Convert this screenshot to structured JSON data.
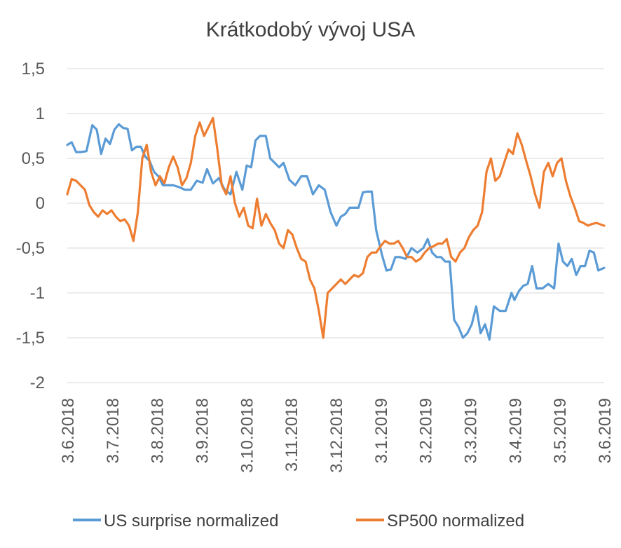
{
  "chart_data": {
    "type": "line",
    "title": "Krátkodobý vývoj USA",
    "xlabel": "",
    "ylabel": "",
    "ylim": [
      -2,
      1.5
    ],
    "y_ticks": [
      "1,5",
      "1",
      "0,5",
      "0",
      "-0,5",
      "-1",
      "-1,5",
      "-2"
    ],
    "y_tick_values": [
      1.5,
      1,
      0.5,
      0,
      -0.5,
      -1,
      -1.5,
      -2
    ],
    "x_ticks": [
      "3.6.2018",
      "3.7.2018",
      "3.8.2018",
      "3.9.2018",
      "3.10.2018",
      "3.11.2018",
      "3.12.2018",
      "3.1.2019",
      "3.2.2019",
      "3.3.2019",
      "3.4.2019",
      "3.5.2019",
      "3.6.2019"
    ],
    "xlim": [
      "2018-06-03",
      "2019-06-03"
    ],
    "grid": "horizontal",
    "legend": "bottom",
    "series": [
      {
        "name": "US surprise normalized",
        "color": "#5B9BD5",
        "x": [
          "2018-06-03",
          "2018-06-06",
          "2018-06-09",
          "2018-06-12",
          "2018-06-16",
          "2018-06-20",
          "2018-06-23",
          "2018-06-26",
          "2018-06-29",
          "2018-07-02",
          "2018-07-05",
          "2018-07-08",
          "2018-07-11",
          "2018-07-14",
          "2018-07-17",
          "2018-07-20",
          "2018-07-23",
          "2018-07-26",
          "2018-07-29",
          "2018-08-01",
          "2018-08-04",
          "2018-08-07",
          "2018-08-10",
          "2018-08-14",
          "2018-08-18",
          "2018-08-22",
          "2018-08-26",
          "2018-08-30",
          "2018-09-03",
          "2018-09-06",
          "2018-09-10",
          "2018-09-14",
          "2018-09-18",
          "2018-09-22",
          "2018-09-26",
          "2018-09-30",
          "2018-10-03",
          "2018-10-06",
          "2018-10-09",
          "2018-10-12",
          "2018-10-16",
          "2018-10-19",
          "2018-10-22",
          "2018-10-25",
          "2018-10-28",
          "2018-11-01",
          "2018-11-05",
          "2018-11-09",
          "2018-11-13",
          "2018-11-17",
          "2018-11-21",
          "2018-11-25",
          "2018-11-29",
          "2018-12-03",
          "2018-12-06",
          "2018-12-09",
          "2018-12-12",
          "2018-12-15",
          "2018-12-18",
          "2018-12-21",
          "2018-12-24",
          "2018-12-27",
          "2018-12-30",
          "2019-01-03",
          "2019-01-06",
          "2019-01-09",
          "2019-01-12",
          "2019-01-15",
          "2019-01-19",
          "2019-01-23",
          "2019-01-27",
          "2019-01-31",
          "2019-02-03",
          "2019-02-06",
          "2019-02-09",
          "2019-02-12",
          "2019-02-15",
          "2019-02-18",
          "2019-02-21",
          "2019-02-24",
          "2019-02-27",
          "2019-03-02",
          "2019-03-05",
          "2019-03-08",
          "2019-03-11",
          "2019-03-14",
          "2019-03-17",
          "2019-03-20",
          "2019-03-24",
          "2019-03-28",
          "2019-04-01",
          "2019-04-03",
          "2019-04-06",
          "2019-04-09",
          "2019-04-12",
          "2019-04-15",
          "2019-04-18",
          "2019-04-22",
          "2019-04-26",
          "2019-04-30",
          "2019-05-03",
          "2019-05-06",
          "2019-05-09",
          "2019-05-12",
          "2019-05-15",
          "2019-05-18",
          "2019-05-21",
          "2019-05-24",
          "2019-05-27",
          "2019-05-30",
          "2019-06-03"
        ],
        "values": [
          0.65,
          0.68,
          0.57,
          0.57,
          0.58,
          0.87,
          0.82,
          0.55,
          0.72,
          0.66,
          0.82,
          0.88,
          0.84,
          0.83,
          0.59,
          0.63,
          0.63,
          0.52,
          0.47,
          0.35,
          0.3,
          0.2,
          0.2,
          0.2,
          0.18,
          0.15,
          0.15,
          0.25,
          0.23,
          0.38,
          0.22,
          0.28,
          0.15,
          0.1,
          0.35,
          0.15,
          0.42,
          0.4,
          0.7,
          0.75,
          0.75,
          0.5,
          0.45,
          0.4,
          0.45,
          0.26,
          0.2,
          0.3,
          0.3,
          0.1,
          0.2,
          0.15,
          -0.1,
          -0.25,
          -0.15,
          -0.12,
          -0.05,
          -0.05,
          -0.05,
          0.12,
          0.13,
          0.13,
          -0.3,
          -0.58,
          -0.75,
          -0.74,
          -0.6,
          -0.6,
          -0.62,
          -0.5,
          -0.55,
          -0.5,
          -0.4,
          -0.55,
          -0.6,
          -0.6,
          -0.65,
          -0.65,
          -1.3,
          -1.38,
          -1.5,
          -1.45,
          -1.35,
          -1.15,
          -1.45,
          -1.35,
          -1.52,
          -1.15,
          -1.2,
          -1.2,
          -1.0,
          -1.08,
          -0.98,
          -0.92,
          -0.9,
          -0.7,
          -0.95,
          -0.95,
          -0.9,
          -0.95,
          -0.45,
          -0.65,
          -0.7,
          -0.62,
          -0.8,
          -0.7,
          -0.7,
          -0.53,
          -0.55,
          -0.75,
          -0.72
        ]
      },
      {
        "name": "SP500 normalized",
        "color": "#ED7D31",
        "x": [
          "2018-06-03",
          "2018-06-06",
          "2018-06-09",
          "2018-06-12",
          "2018-06-15",
          "2018-06-18",
          "2018-06-21",
          "2018-06-24",
          "2018-06-27",
          "2018-06-30",
          "2018-07-03",
          "2018-07-06",
          "2018-07-09",
          "2018-07-12",
          "2018-07-15",
          "2018-07-18",
          "2018-07-21",
          "2018-07-24",
          "2018-07-27",
          "2018-07-30",
          "2018-08-02",
          "2018-08-05",
          "2018-08-08",
          "2018-08-11",
          "2018-08-14",
          "2018-08-17",
          "2018-08-20",
          "2018-08-23",
          "2018-08-26",
          "2018-08-29",
          "2018-09-01",
          "2018-09-04",
          "2018-09-07",
          "2018-09-10",
          "2018-09-13",
          "2018-09-16",
          "2018-09-19",
          "2018-09-22",
          "2018-09-25",
          "2018-09-28",
          "2018-10-01",
          "2018-10-04",
          "2018-10-07",
          "2018-10-10",
          "2018-10-13",
          "2018-10-16",
          "2018-10-19",
          "2018-10-22",
          "2018-10-25",
          "2018-10-28",
          "2018-10-31",
          "2018-11-03",
          "2018-11-06",
          "2018-11-09",
          "2018-11-12",
          "2018-11-15",
          "2018-11-18",
          "2018-11-21",
          "2018-11-24",
          "2018-11-27",
          "2018-11-30",
          "2018-12-03",
          "2018-12-06",
          "2018-12-09",
          "2018-12-12",
          "2018-12-15",
          "2018-12-18",
          "2018-12-21",
          "2018-12-24",
          "2018-12-27",
          "2018-12-30",
          "2019-01-02",
          "2019-01-05",
          "2019-01-08",
          "2019-01-11",
          "2019-01-14",
          "2019-01-17",
          "2019-01-20",
          "2019-01-23",
          "2019-01-26",
          "2019-01-29",
          "2019-02-01",
          "2019-02-04",
          "2019-02-07",
          "2019-02-10",
          "2019-02-13",
          "2019-02-16",
          "2019-02-19",
          "2019-02-22",
          "2019-02-25",
          "2019-02-28",
          "2019-03-03",
          "2019-03-06",
          "2019-03-09",
          "2019-03-12",
          "2019-03-15",
          "2019-03-18",
          "2019-03-21",
          "2019-03-24",
          "2019-03-27",
          "2019-03-30",
          "2019-04-02",
          "2019-04-05",
          "2019-04-08",
          "2019-04-11",
          "2019-04-14",
          "2019-04-17",
          "2019-04-20",
          "2019-04-23",
          "2019-04-26",
          "2019-04-29",
          "2019-05-02",
          "2019-05-05",
          "2019-05-08",
          "2019-05-11",
          "2019-05-14",
          "2019-05-17",
          "2019-05-20",
          "2019-05-23",
          "2019-05-26",
          "2019-05-29",
          "2019-06-01",
          "2019-06-03"
        ],
        "values": [
          0.1,
          0.27,
          0.25,
          0.2,
          0.15,
          -0.02,
          -0.1,
          -0.15,
          -0.08,
          -0.12,
          -0.08,
          -0.15,
          -0.2,
          -0.18,
          -0.25,
          -0.42,
          -0.1,
          0.5,
          0.65,
          0.35,
          0.2,
          0.3,
          0.22,
          0.4,
          0.52,
          0.4,
          0.2,
          0.28,
          0.45,
          0.75,
          0.9,
          0.75,
          0.85,
          0.95,
          0.6,
          0.2,
          0.1,
          0.3,
          0.0,
          -0.15,
          -0.05,
          -0.25,
          -0.28,
          0.05,
          -0.25,
          -0.12,
          -0.22,
          -0.3,
          -0.45,
          -0.5,
          -0.3,
          -0.35,
          -0.5,
          -0.62,
          -0.65,
          -0.85,
          -0.95,
          -1.2,
          -1.5,
          -1.0,
          -0.95,
          -0.9,
          -0.85,
          -0.9,
          -0.85,
          -0.8,
          -0.82,
          -0.78,
          -0.6,
          -0.55,
          -0.55,
          -0.48,
          -0.42,
          -0.45,
          -0.45,
          -0.42,
          -0.5,
          -0.6,
          -0.6,
          -0.65,
          -0.62,
          -0.55,
          -0.5,
          -0.48,
          -0.45,
          -0.45,
          -0.4,
          -0.6,
          -0.65,
          -0.55,
          -0.5,
          -0.38,
          -0.3,
          -0.25,
          -0.1,
          0.35,
          0.5,
          0.25,
          0.3,
          0.45,
          0.6,
          0.55,
          0.78,
          0.65,
          0.47,
          0.3,
          0.1,
          -0.05,
          0.35,
          0.45,
          0.3,
          0.45,
          0.5,
          0.25,
          0.08,
          -0.05,
          -0.2,
          -0.22,
          -0.25,
          -0.23,
          -0.22,
          -0.24,
          -0.25
        ]
      }
    ]
  }
}
